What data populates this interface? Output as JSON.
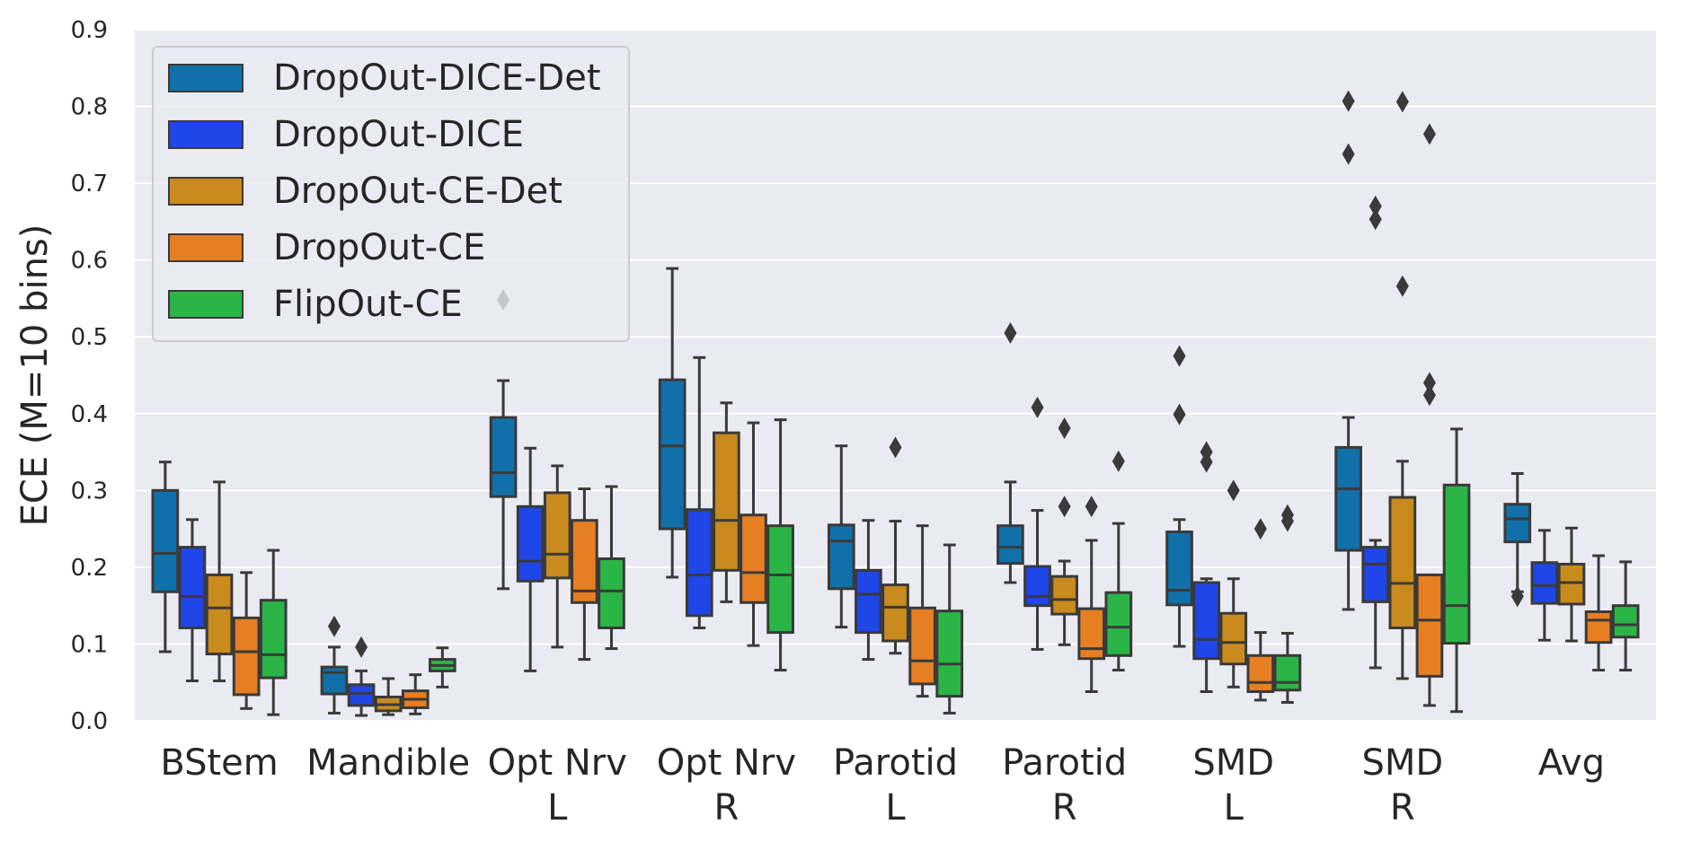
{
  "chart_data": {
    "type": "box",
    "title": "",
    "xlabel": "",
    "ylabel": "ECE (M=10 bins)",
    "ylim": [
      0.0,
      0.9
    ],
    "yticks": [
      0.0,
      0.1,
      0.2,
      0.3,
      0.4,
      0.5,
      0.6,
      0.7,
      0.8,
      0.9
    ],
    "ytick_labels": [
      "0.0",
      "0.1",
      "0.2",
      "0.3",
      "0.4",
      "0.5",
      "0.6",
      "0.7",
      "0.8",
      "0.9"
    ],
    "categories": [
      [
        "BStem"
      ],
      [
        "Mandible"
      ],
      [
        "Opt Nrv",
        "L"
      ],
      [
        "Opt Nrv",
        "R"
      ],
      [
        "Parotid",
        "L"
      ],
      [
        "Parotid",
        "R"
      ],
      [
        "SMD",
        "L"
      ],
      [
        "SMD",
        "R"
      ],
      [
        "Avg"
      ]
    ],
    "legend": {
      "position": "top-left"
    },
    "series": [
      {
        "name": "DropOut-DICE-Det",
        "color": "#1170aa",
        "boxes": [
          {
            "whislo": 0.09,
            "q1": 0.168,
            "med": 0.218,
            "q3": 0.3,
            "whishi": 0.337,
            "fliers": []
          },
          {
            "whislo": 0.01,
            "q1": 0.035,
            "med": 0.063,
            "q3": 0.07,
            "whishi": 0.096,
            "fliers": [
              0.123
            ]
          },
          {
            "whislo": 0.172,
            "q1": 0.292,
            "med": 0.323,
            "q3": 0.395,
            "whishi": 0.443,
            "fliers": [
              0.548
            ]
          },
          {
            "whislo": 0.187,
            "q1": 0.25,
            "med": 0.358,
            "q3": 0.444,
            "whishi": 0.589,
            "fliers": []
          },
          {
            "whislo": 0.122,
            "q1": 0.172,
            "med": 0.234,
            "q3": 0.255,
            "whishi": 0.358,
            "fliers": []
          },
          {
            "whislo": 0.18,
            "q1": 0.205,
            "med": 0.226,
            "q3": 0.254,
            "whishi": 0.311,
            "fliers": [
              0.505
            ]
          },
          {
            "whislo": 0.097,
            "q1": 0.151,
            "med": 0.17,
            "q3": 0.246,
            "whishi": 0.262,
            "fliers": [
              0.475,
              0.399
            ]
          },
          {
            "whislo": 0.145,
            "q1": 0.222,
            "med": 0.302,
            "q3": 0.356,
            "whishi": 0.395,
            "fliers": [
              0.807,
              0.738
            ]
          },
          {
            "whislo": 0.168,
            "q1": 0.233,
            "med": 0.263,
            "q3": 0.282,
            "whishi": 0.322,
            "fliers": [
              0.162
            ]
          }
        ]
      },
      {
        "name": "DropOut-DICE",
        "color": "#1f46e8",
        "boxes": [
          {
            "whislo": 0.052,
            "q1": 0.121,
            "med": 0.162,
            "q3": 0.226,
            "whishi": 0.262,
            "fliers": []
          },
          {
            "whislo": 0.007,
            "q1": 0.02,
            "med": 0.036,
            "q3": 0.047,
            "whishi": 0.065,
            "fliers": [
              0.096
            ]
          },
          {
            "whislo": 0.065,
            "q1": 0.182,
            "med": 0.208,
            "q3": 0.279,
            "whishi": 0.355,
            "fliers": []
          },
          {
            "whislo": 0.121,
            "q1": 0.137,
            "med": 0.19,
            "q3": 0.275,
            "whishi": 0.473,
            "fliers": []
          },
          {
            "whislo": 0.08,
            "q1": 0.115,
            "med": 0.165,
            "q3": 0.196,
            "whishi": 0.261,
            "fliers": []
          },
          {
            "whislo": 0.093,
            "q1": 0.15,
            "med": 0.162,
            "q3": 0.201,
            "whishi": 0.274,
            "fliers": [
              0.408
            ]
          },
          {
            "whislo": 0.038,
            "q1": 0.081,
            "med": 0.106,
            "q3": 0.18,
            "whishi": 0.185,
            "fliers": [
              0.35,
              0.337
            ]
          },
          {
            "whislo": 0.069,
            "q1": 0.155,
            "med": 0.204,
            "q3": 0.226,
            "whishi": 0.235,
            "fliers": [
              0.67,
              0.653
            ]
          },
          {
            "whislo": 0.105,
            "q1": 0.153,
            "med": 0.176,
            "q3": 0.206,
            "whishi": 0.248,
            "fliers": []
          }
        ]
      },
      {
        "name": "DropOut-CE-Det",
        "color": "#c98a1e",
        "boxes": [
          {
            "whislo": 0.052,
            "q1": 0.087,
            "med": 0.147,
            "q3": 0.19,
            "whishi": 0.311,
            "fliers": []
          },
          {
            "whislo": 0.008,
            "q1": 0.013,
            "med": 0.021,
            "q3": 0.031,
            "whishi": 0.055,
            "fliers": []
          },
          {
            "whislo": 0.096,
            "q1": 0.186,
            "med": 0.217,
            "q3": 0.297,
            "whishi": 0.332,
            "fliers": []
          },
          {
            "whislo": 0.155,
            "q1": 0.196,
            "med": 0.261,
            "q3": 0.375,
            "whishi": 0.414,
            "fliers": []
          },
          {
            "whislo": 0.088,
            "q1": 0.104,
            "med": 0.148,
            "q3": 0.177,
            "whishi": 0.26,
            "fliers": [
              0.356
            ]
          },
          {
            "whislo": 0.099,
            "q1": 0.139,
            "med": 0.158,
            "q3": 0.188,
            "whishi": 0.208,
            "fliers": [
              0.381,
              0.279
            ]
          },
          {
            "whislo": 0.044,
            "q1": 0.074,
            "med": 0.102,
            "q3": 0.14,
            "whishi": 0.185,
            "fliers": [
              0.3
            ]
          },
          {
            "whislo": 0.055,
            "q1": 0.121,
            "med": 0.179,
            "q3": 0.291,
            "whishi": 0.338,
            "fliers": [
              0.806,
              0.566
            ]
          },
          {
            "whislo": 0.104,
            "q1": 0.152,
            "med": 0.18,
            "q3": 0.204,
            "whishi": 0.251,
            "fliers": []
          }
        ]
      },
      {
        "name": "DropOut-CE",
        "color": "#e67e22",
        "boxes": [
          {
            "whislo": 0.016,
            "q1": 0.034,
            "med": 0.09,
            "q3": 0.134,
            "whishi": 0.193,
            "fliers": []
          },
          {
            "whislo": 0.009,
            "q1": 0.017,
            "med": 0.028,
            "q3": 0.039,
            "whishi": 0.06,
            "fliers": []
          },
          {
            "whislo": 0.08,
            "q1": 0.154,
            "med": 0.169,
            "q3": 0.261,
            "whishi": 0.302,
            "fliers": []
          },
          {
            "whislo": 0.098,
            "q1": 0.154,
            "med": 0.193,
            "q3": 0.268,
            "whishi": 0.388,
            "fliers": []
          },
          {
            "whislo": 0.032,
            "q1": 0.048,
            "med": 0.078,
            "q3": 0.147,
            "whishi": 0.254,
            "fliers": []
          },
          {
            "whislo": 0.038,
            "q1": 0.081,
            "med": 0.094,
            "q3": 0.146,
            "whishi": 0.235,
            "fliers": [
              0.279
            ]
          },
          {
            "whislo": 0.027,
            "q1": 0.038,
            "med": 0.05,
            "q3": 0.085,
            "whishi": 0.115,
            "fliers": [
              0.25
            ]
          },
          {
            "whislo": 0.02,
            "q1": 0.058,
            "med": 0.131,
            "q3": 0.19,
            "whishi": 0.19,
            "fliers": [
              0.764,
              0.44,
              0.424
            ]
          },
          {
            "whislo": 0.066,
            "q1": 0.102,
            "med": 0.131,
            "q3": 0.142,
            "whishi": 0.215,
            "fliers": []
          }
        ]
      },
      {
        "name": "FlipOut-CE",
        "color": "#2ab546",
        "boxes": [
          {
            "whislo": 0.008,
            "q1": 0.056,
            "med": 0.086,
            "q3": 0.157,
            "whishi": 0.222,
            "fliers": []
          },
          {
            "whislo": 0.044,
            "q1": 0.065,
            "med": 0.072,
            "q3": 0.08,
            "whishi": 0.095,
            "fliers": []
          },
          {
            "whislo": 0.094,
            "q1": 0.121,
            "med": 0.169,
            "q3": 0.211,
            "whishi": 0.305,
            "fliers": []
          },
          {
            "whislo": 0.066,
            "q1": 0.115,
            "med": 0.19,
            "q3": 0.254,
            "whishi": 0.392,
            "fliers": []
          },
          {
            "whislo": 0.01,
            "q1": 0.032,
            "med": 0.074,
            "q3": 0.143,
            "whishi": 0.229,
            "fliers": []
          },
          {
            "whislo": 0.066,
            "q1": 0.085,
            "med": 0.122,
            "q3": 0.167,
            "whishi": 0.257,
            "fliers": [
              0.338
            ]
          },
          {
            "whislo": 0.024,
            "q1": 0.04,
            "med": 0.05,
            "q3": 0.085,
            "whishi": 0.114,
            "fliers": [
              0.268,
              0.26
            ]
          },
          {
            "whislo": 0.012,
            "q1": 0.101,
            "med": 0.15,
            "q3": 0.307,
            "whishi": 0.38,
            "fliers": []
          },
          {
            "whislo": 0.066,
            "q1": 0.109,
            "med": 0.125,
            "q3": 0.15,
            "whishi": 0.207,
            "fliers": []
          }
        ]
      }
    ]
  }
}
